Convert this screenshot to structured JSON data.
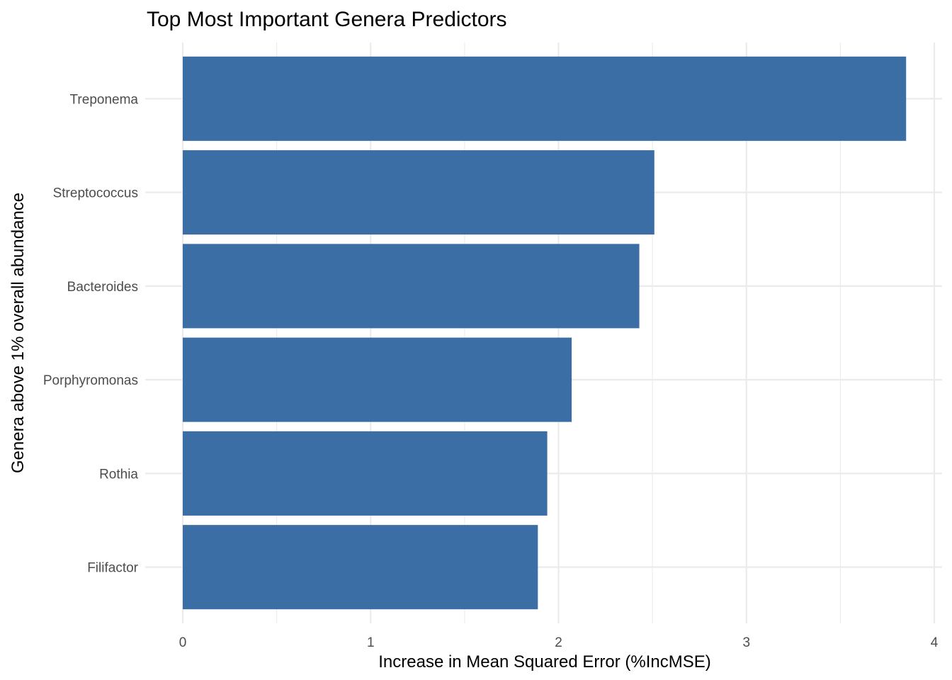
{
  "chart_data": {
    "type": "bar",
    "orientation": "horizontal",
    "title": "Top Most Important Genera Predictors",
    "xlabel": "Increase in Mean Squared Error (%IncMSE)",
    "ylabel": "Genera above 1% overall abundance",
    "categories": [
      "Treponema",
      "Streptococcus",
      "Bacteroides",
      "Porphyromonas",
      "Rothia",
      "Filifactor"
    ],
    "values": [
      3.85,
      2.51,
      2.43,
      2.07,
      1.94,
      1.89
    ],
    "xlim": [
      0,
      4
    ],
    "xticks": [
      0,
      1,
      2,
      3,
      4
    ],
    "grid": true,
    "bar_color": "#3a6ea5"
  }
}
